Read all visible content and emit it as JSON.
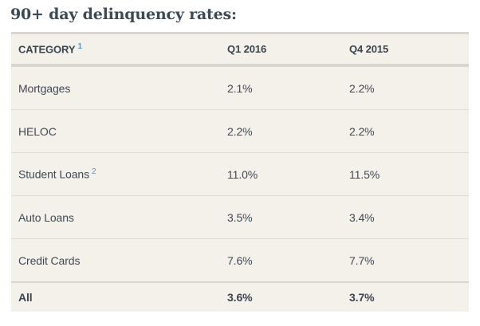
{
  "title": "90+ day delinquency rates:",
  "table": {
    "header": {
      "category": "CATEGORY",
      "category_sup": "1",
      "col_q1_2016": "Q1 2016",
      "col_q4_2015": "Q4 2015"
    },
    "rows": [
      {
        "category": "Mortgages",
        "sup": "",
        "q1_2016": "2.1%",
        "q4_2015": "2.2%"
      },
      {
        "category": "HELOC",
        "sup": "",
        "q1_2016": "2.2%",
        "q4_2015": "2.2%"
      },
      {
        "category": "Student Loans",
        "sup": "2",
        "q1_2016": "11.0%",
        "q4_2015": "11.5%"
      },
      {
        "category": "Auto Loans",
        "sup": "",
        "q1_2016": "3.5%",
        "q4_2015": "3.4%"
      },
      {
        "category": "Credit Cards",
        "sup": "",
        "q1_2016": "7.6%",
        "q4_2015": "7.7%"
      }
    ],
    "total_row": {
      "category": "All",
      "q1_2016": "3.6%",
      "q4_2015": "3.7%"
    }
  },
  "colors": {
    "table_background": "#f4f1eb",
    "separator": "#d9d6d0",
    "thin_separator": "#e0ddd7",
    "text": "#3f4a54",
    "title_text": "#3b4a57",
    "superscript": "#5e93bd"
  },
  "chart_data": {
    "type": "table",
    "title": "90+ day delinquency rates",
    "columns": [
      "CATEGORY",
      "Q1 2016",
      "Q4 2015"
    ],
    "rows": [
      [
        "Mortgages",
        "2.1%",
        "2.2%"
      ],
      [
        "HELOC",
        "2.2%",
        "2.2%"
      ],
      [
        "Student Loans",
        "11.0%",
        "11.5%"
      ],
      [
        "Auto Loans",
        "3.5%",
        "3.4%"
      ],
      [
        "Credit Cards",
        "7.6%",
        "7.7%"
      ],
      [
        "All",
        "3.6%",
        "3.7%"
      ]
    ],
    "footnote_markers": [
      {
        "on": "CATEGORY",
        "marker": "1"
      },
      {
        "on": "Student Loans",
        "marker": "2"
      }
    ]
  }
}
